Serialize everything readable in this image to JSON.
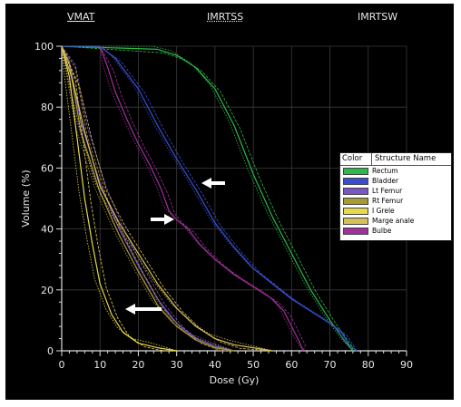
{
  "headers": [
    "VMAT",
    "IMRTSS",
    "IMRTSW"
  ],
  "chart_data": {
    "type": "line",
    "title": "",
    "xlabel": "Dose (Gy)",
    "ylabel": "Volume (%)",
    "xlim": [
      0,
      90
    ],
    "ylim": [
      0,
      100
    ],
    "xticks": [
      0,
      10,
      20,
      30,
      40,
      50,
      60,
      70,
      80,
      90
    ],
    "yticks": [
      0,
      20,
      40,
      60,
      80,
      100
    ],
    "grid": true,
    "legend": {
      "position": "right",
      "col_color": "Color",
      "col_name": "Structure Name"
    },
    "series": [
      {
        "name": "Rectum",
        "color": "#2db84a",
        "points": [
          [
            0,
            100
          ],
          [
            25,
            99
          ],
          [
            30,
            97
          ],
          [
            35,
            93
          ],
          [
            40,
            86
          ],
          [
            45,
            74
          ],
          [
            50,
            58
          ],
          [
            55,
            44
          ],
          [
            60,
            32
          ],
          [
            65,
            20
          ],
          [
            70,
            10
          ],
          [
            74,
            3
          ],
          [
            76,
            0
          ]
        ]
      },
      {
        "name": "Bladder",
        "color": "#3a4fd0",
        "points": [
          [
            0,
            100
          ],
          [
            10,
            100
          ],
          [
            14,
            96
          ],
          [
            20,
            86
          ],
          [
            25,
            74
          ],
          [
            30,
            63
          ],
          [
            35,
            53
          ],
          [
            40,
            42
          ],
          [
            45,
            34
          ],
          [
            50,
            27
          ],
          [
            55,
            22
          ],
          [
            60,
            17
          ],
          [
            65,
            13
          ],
          [
            70,
            9
          ],
          [
            73,
            6
          ],
          [
            75,
            2
          ],
          [
            77,
            0
          ]
        ]
      },
      {
        "name": "Lt Femur",
        "color": "#7a55c8",
        "points": [
          [
            0,
            100
          ],
          [
            2,
            95
          ],
          [
            5,
            75
          ],
          [
            10,
            55
          ],
          [
            15,
            40
          ],
          [
            20,
            28
          ],
          [
            25,
            17
          ],
          [
            30,
            9
          ],
          [
            35,
            4
          ],
          [
            40,
            1.5
          ],
          [
            45,
            0
          ]
        ]
      },
      {
        "name": "Rt Femur",
        "color": "#a89a30",
        "points": [
          [
            0,
            100
          ],
          [
            2,
            94
          ],
          [
            5,
            72
          ],
          [
            10,
            52
          ],
          [
            15,
            38
          ],
          [
            20,
            26
          ],
          [
            25,
            15
          ],
          [
            30,
            8
          ],
          [
            35,
            3.5
          ],
          [
            40,
            1
          ],
          [
            45,
            0
          ]
        ]
      },
      {
        "name": "I Grele",
        "color": "#e8d84a",
        "points": [
          [
            0,
            100
          ],
          [
            2,
            90
          ],
          [
            4,
            70
          ],
          [
            6,
            50
          ],
          [
            8,
            35
          ],
          [
            10,
            22
          ],
          [
            13,
            12
          ],
          [
            16,
            6
          ],
          [
            20,
            2.5
          ],
          [
            25,
            1
          ],
          [
            30,
            0
          ]
        ]
      },
      {
        "name": "Marge anale",
        "color": "#d8c058",
        "points": [
          [
            0,
            100
          ],
          [
            3,
            88
          ],
          [
            6,
            72
          ],
          [
            10,
            54
          ],
          [
            15,
            42
          ],
          [
            20,
            32
          ],
          [
            25,
            22
          ],
          [
            30,
            14
          ],
          [
            35,
            8
          ],
          [
            40,
            4
          ],
          [
            45,
            2
          ],
          [
            55,
            0
          ]
        ]
      },
      {
        "name": "Bulbe",
        "color": "#a0309a",
        "points": [
          [
            10,
            100
          ],
          [
            12,
            93
          ],
          [
            14,
            85
          ],
          [
            17,
            76
          ],
          [
            20,
            68
          ],
          [
            23,
            61
          ],
          [
            26,
            53
          ],
          [
            28,
            46
          ],
          [
            30,
            43
          ],
          [
            33,
            40
          ],
          [
            36,
            35
          ],
          [
            40,
            30
          ],
          [
            45,
            25
          ],
          [
            50,
            21
          ],
          [
            55,
            17
          ],
          [
            58,
            13
          ],
          [
            60,
            8
          ],
          [
            62,
            3
          ],
          [
            63,
            0
          ]
        ]
      }
    ]
  }
}
